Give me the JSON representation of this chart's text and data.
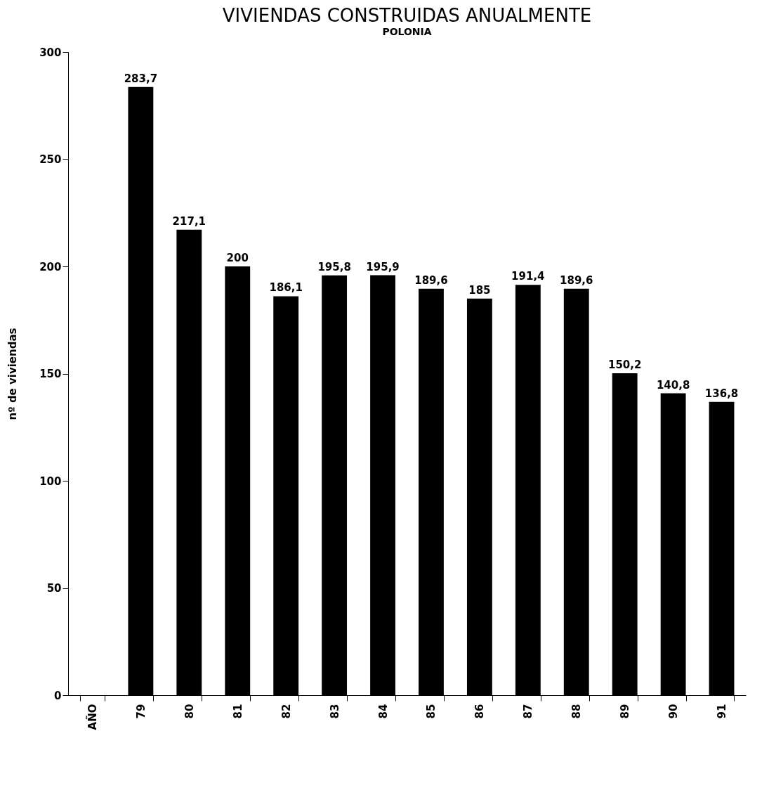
{
  "chart_data": {
    "type": "bar",
    "title": "VIVIENDAS CONSTRUIDAS ANUALMENTE",
    "subtitle": "POLONIA",
    "ylabel": "nº de viviendas",
    "categories": [
      "AÑO",
      "79",
      "80",
      "81",
      "82",
      "83",
      "84",
      "85",
      "86",
      "87",
      "88",
      "89",
      "90",
      "91"
    ],
    "values": [
      null,
      283.7,
      217.1,
      200,
      186.1,
      195.8,
      195.9,
      189.6,
      185,
      191.4,
      189.6,
      150.2,
      140.8,
      136.8
    ],
    "value_labels": [
      null,
      "283,7",
      "217,1",
      "200",
      "186,1",
      "195,8",
      "195,9",
      "189,6",
      "185",
      "191,4",
      "189,6",
      "150,2",
      "140,8",
      "136,8"
    ],
    "color": "#000000",
    "ylim": [
      0,
      300
    ],
    "yticks": [
      0,
      50,
      100,
      150,
      200,
      250,
      300
    ],
    "grid": false
  }
}
